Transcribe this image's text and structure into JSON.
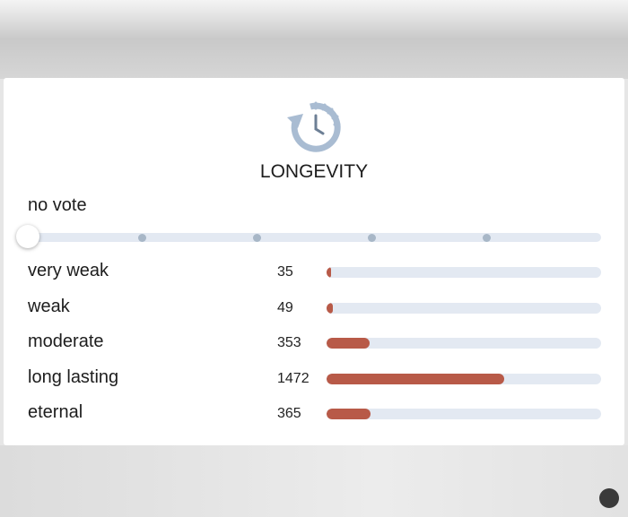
{
  "title": "LONGEVITY",
  "vote_status": "no vote",
  "rows": [
    {
      "label": "very weak",
      "count": 35
    },
    {
      "label": "weak",
      "count": 49
    },
    {
      "label": "moderate",
      "count": 353
    },
    {
      "label": "long lasting",
      "count": 1472
    },
    {
      "label": "eternal",
      "count": 365
    }
  ]
}
